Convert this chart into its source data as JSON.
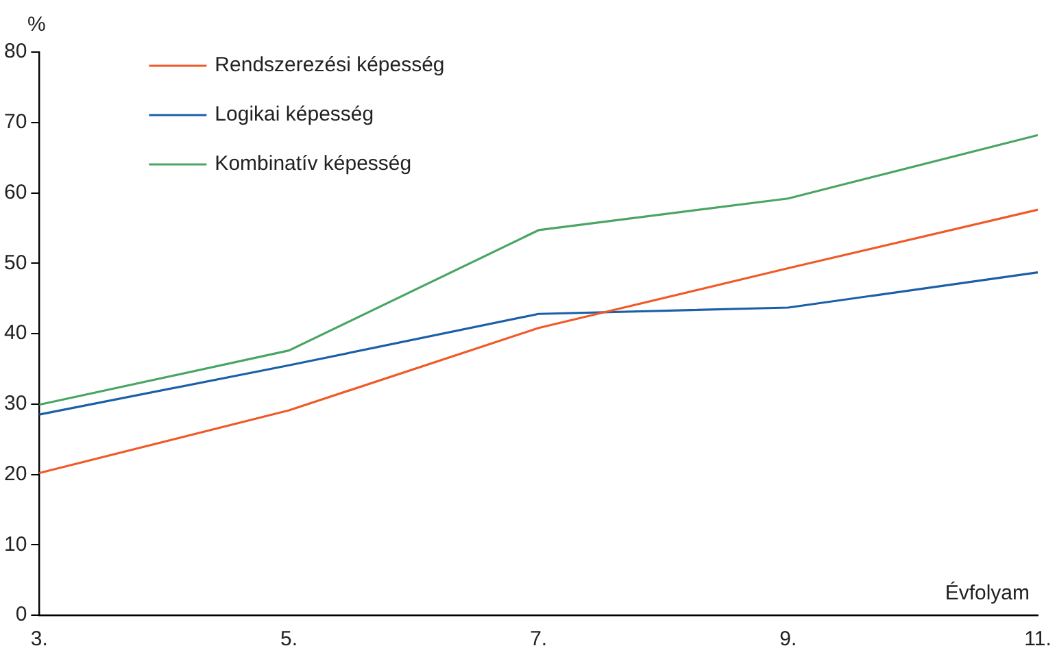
{
  "chart_data": {
    "type": "line",
    "ylabel": "%",
    "xlabel": "Évfolyam",
    "categories": [
      "3.",
      "5.",
      "7.",
      "9.",
      "11."
    ],
    "series": [
      {
        "name": "Rendszerezési képesség",
        "color": "#f05a28",
        "values": [
          20.2,
          29.1,
          40.8,
          49.3,
          57.6
        ]
      },
      {
        "name": "Logikai képesség",
        "color": "#1a5fa8",
        "values": [
          28.5,
          35.5,
          42.8,
          43.7,
          48.7
        ]
      },
      {
        "name": "Kombinatív képesség",
        "color": "#4aa564",
        "values": [
          29.9,
          37.6,
          54.7,
          59.2,
          68.2
        ]
      }
    ],
    "ylim": [
      0,
      80
    ],
    "yticks": [
      0,
      10,
      20,
      30,
      40,
      50,
      60,
      70,
      80
    ],
    "grid": false,
    "legend": "top left",
    "marker": "none",
    "line_style": "solid"
  }
}
